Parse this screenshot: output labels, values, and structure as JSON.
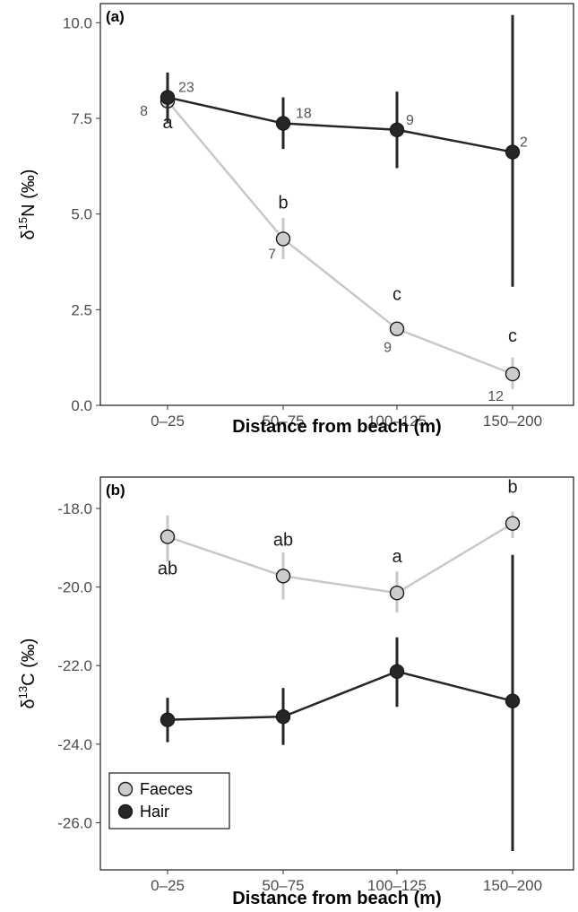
{
  "chart_data": [
    {
      "type": "line",
      "panel_tag": "(a)",
      "xlabel": "Distance from beach (m)",
      "ylabel": {
        "prefix": "δ",
        "sup": "15",
        "suffix": "N (‰)"
      },
      "categories": [
        "0–25",
        "50–75",
        "100–125",
        "150–200"
      ],
      "ylim": [
        0,
        10.5
      ],
      "yticks": [
        0.0,
        2.5,
        5.0,
        7.5,
        10.0
      ],
      "ytick_labels": [
        "0.0",
        "2.5",
        "5.0",
        "7.5",
        "10.0"
      ],
      "series": [
        {
          "name": "Faeces",
          "color": "#c8c8c8",
          "marker_fill": "#cccccc",
          "values": [
            7.95,
            4.35,
            2.0,
            0.82
          ],
          "err_low": [
            7.6,
            3.82,
            1.85,
            0.42
          ],
          "err_high": [
            8.3,
            4.9,
            2.15,
            1.25
          ],
          "n_labels": [
            "8",
            "7",
            "9",
            "12"
          ],
          "group_letters": [
            "a",
            "b",
            "c",
            "c"
          ]
        },
        {
          "name": "Hair",
          "color": "#262626",
          "marker_fill": "#262626",
          "values": [
            8.05,
            7.37,
            7.2,
            6.62
          ],
          "err_low": [
            7.4,
            6.7,
            6.2,
            3.1
          ],
          "err_high": [
            8.7,
            8.05,
            8.2,
            10.2
          ],
          "n_labels": [
            "23",
            "18",
            "9",
            "2"
          ]
        }
      ]
    },
    {
      "type": "line",
      "panel_tag": "(b)",
      "xlabel": "Distance from beach (m)",
      "ylabel": {
        "prefix": "δ",
        "sup": "13",
        "suffix": "C (‰)"
      },
      "categories": [
        "0–25",
        "50–75",
        "100–125",
        "150–200"
      ],
      "ylim": [
        -27.2,
        -17.2
      ],
      "yticks": [
        -26.0,
        -24.0,
        -22.0,
        -20.0,
        -18.0
      ],
      "ytick_labels": [
        "-26.0",
        "-24.0",
        "-22.0",
        "-20.0",
        "-18.0"
      ],
      "legend_position": "bottom-left",
      "series": [
        {
          "name": "Faeces",
          "color": "#c8c8c8",
          "marker_fill": "#cccccc",
          "values": [
            -18.72,
            -19.72,
            -20.15,
            -18.38
          ],
          "err_low": [
            -19.35,
            -20.32,
            -20.65,
            -18.75
          ],
          "err_high": [
            -18.18,
            -19.12,
            -19.6,
            -18.08
          ],
          "group_letters": [
            "ab",
            "ab",
            "a",
            "b"
          ]
        },
        {
          "name": "Hair",
          "color": "#262626",
          "marker_fill": "#262626",
          "values": [
            -23.38,
            -23.3,
            -22.15,
            -22.9
          ],
          "err_low": [
            -23.95,
            -24.02,
            -23.05,
            -26.72
          ],
          "err_high": [
            -22.82,
            -22.57,
            -21.28,
            -19.18
          ]
        }
      ]
    }
  ]
}
